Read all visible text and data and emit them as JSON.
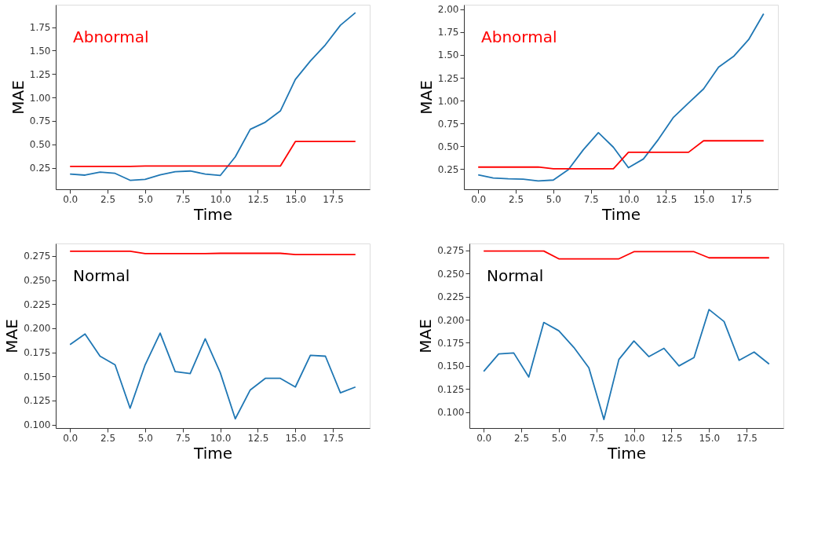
{
  "chart_data": [
    {
      "type": "line",
      "xlabel": "Time",
      "ylabel": "MAE",
      "annotations": [
        "Abnormal"
      ],
      "x": [
        0,
        1,
        2,
        3,
        4,
        5,
        6,
        7,
        8,
        9,
        10,
        11,
        12,
        13,
        14,
        15,
        16,
        17,
        18,
        19
      ],
      "series": [
        {
          "color": "#1f77b4",
          "values": [
            0.183,
            0.171,
            0.204,
            0.19,
            0.116,
            0.125,
            0.174,
            0.208,
            0.215,
            0.183,
            0.167,
            0.366,
            0.66,
            0.736,
            0.856,
            1.192,
            1.389,
            1.562,
            1.771,
            1.905
          ]
        },
        {
          "color": "#ff0000",
          "values": [
            0.264,
            0.264,
            0.264,
            0.264,
            0.264,
            0.268,
            0.268,
            0.268,
            0.268,
            0.268,
            0.268,
            0.268,
            0.268,
            0.268,
            0.268,
            0.53,
            0.53,
            0.53,
            0.53,
            0.53
          ]
        }
      ],
      "xlim": [
        -0.95,
        19.95
      ],
      "ylim": [
        0.02,
        1.99
      ],
      "xticks": [
        {
          "value": 0,
          "label": "0.0"
        },
        2.5,
        {
          "value": 5,
          "label": "5.0"
        },
        7.5,
        {
          "value": 10,
          "label": "10.0"
        },
        12.5,
        {
          "value": 15,
          "label": "15.0"
        },
        17.5
      ],
      "yticks": [
        0.25,
        {
          "value": 0.5,
          "label": "0.50"
        },
        0.75,
        {
          "value": 1,
          "label": "1.00"
        },
        1.25,
        {
          "value": 1.5,
          "label": "1.50"
        },
        1.75
      ],
      "grid": false,
      "legend": false
    },
    {
      "type": "line",
      "xlabel": "Time",
      "ylabel": "MAE",
      "annotations": [
        "Abnormal"
      ],
      "x": [
        0,
        1,
        2,
        3,
        4,
        5,
        6,
        7,
        8,
        9,
        10,
        11,
        12,
        13,
        14,
        15,
        16,
        17,
        18,
        19
      ],
      "series": [
        {
          "color": "#1f77b4",
          "values": [
            0.187,
            0.154,
            0.145,
            0.14,
            0.121,
            0.131,
            0.245,
            0.463,
            0.65,
            0.49,
            0.266,
            0.362,
            0.577,
            0.818,
            0.974,
            1.128,
            1.367,
            1.484,
            1.668,
            1.951
          ]
        },
        {
          "color": "#ff0000",
          "values": [
            0.273,
            0.273,
            0.273,
            0.273,
            0.273,
            0.255,
            0.255,
            0.255,
            0.255,
            0.255,
            0.435,
            0.435,
            0.435,
            0.435,
            0.435,
            0.561,
            0.561,
            0.561,
            0.561,
            0.561
          ]
        }
      ],
      "xlim": [
        -0.95,
        19.95
      ],
      "ylim": [
        0.03,
        2.05
      ],
      "xticks": [
        {
          "value": 0,
          "label": "0.0"
        },
        2.5,
        {
          "value": 5,
          "label": "5.0"
        },
        7.5,
        {
          "value": 10,
          "label": "10.0"
        },
        12.5,
        {
          "value": 15,
          "label": "15.0"
        },
        17.5
      ],
      "yticks": [
        0.25,
        {
          "value": 0.5,
          "label": "0.50"
        },
        0.75,
        {
          "value": 1,
          "label": "1.00"
        },
        1.25,
        {
          "value": 1.5,
          "label": "1.50"
        },
        1.75,
        {
          "value": 2,
          "label": "2.00"
        }
      ],
      "grid": false,
      "legend": false
    },
    {
      "type": "line",
      "xlabel": "Time",
      "ylabel": "MAE",
      "annotations": [
        "Normal"
      ],
      "x": [
        0,
        1,
        2,
        3,
        4,
        5,
        6,
        7,
        8,
        9,
        10,
        11,
        12,
        13,
        14,
        15,
        16,
        17,
        18,
        19
      ],
      "series": [
        {
          "color": "#1f77b4",
          "values": [
            0.183,
            0.194,
            0.171,
            0.162,
            0.117,
            0.162,
            0.195,
            0.155,
            0.153,
            0.189,
            0.154,
            0.106,
            0.136,
            0.148,
            0.148,
            0.139,
            0.172,
            0.171,
            0.133,
            0.139
          ]
        },
        {
          "color": "#ff0000",
          "values": [
            0.28,
            0.28,
            0.28,
            0.28,
            0.28,
            0.2775,
            0.2775,
            0.2775,
            0.2775,
            0.2775,
            0.2778,
            0.2778,
            0.2778,
            0.2778,
            0.2778,
            0.2765,
            0.2765,
            0.2765,
            0.2765,
            0.2765
          ]
        }
      ],
      "xlim": [
        -0.95,
        19.95
      ],
      "ylim": [
        0.0964,
        0.288
      ],
      "xticks": [
        {
          "value": 0,
          "label": "0.0"
        },
        2.5,
        {
          "value": 5,
          "label": "5.0"
        },
        7.5,
        {
          "value": 10,
          "label": "10.0"
        },
        12.5,
        {
          "value": 15,
          "label": "15.0"
        },
        17.5
      ],
      "yticks": [
        {
          "value": 0.1,
          "label": "0.100"
        },
        0.125,
        {
          "value": 0.15,
          "label": "0.150"
        },
        0.175,
        {
          "value": 0.2,
          "label": "0.200"
        },
        0.225,
        {
          "value": 0.25,
          "label": "0.250"
        },
        0.275
      ],
      "grid": false,
      "legend": false
    },
    {
      "type": "line",
      "xlabel": "Time",
      "ylabel": "MAE",
      "annotations": [
        "Normal"
      ],
      "x": [
        0,
        1,
        2,
        3,
        4,
        5,
        6,
        7,
        8,
        9,
        10,
        11,
        12,
        13,
        14,
        15,
        16,
        17,
        18,
        19
      ],
      "series": [
        {
          "color": "#1f77b4",
          "values": [
            0.144,
            0.163,
            0.164,
            0.138,
            0.197,
            0.188,
            0.17,
            0.148,
            0.092,
            0.157,
            0.177,
            0.16,
            0.169,
            0.15,
            0.159,
            0.211,
            0.198,
            0.156,
            0.165,
            0.152
          ]
        },
        {
          "color": "#ff0000",
          "values": [
            0.2743,
            0.2743,
            0.2743,
            0.2743,
            0.2743,
            0.2659,
            0.2659,
            0.2659,
            0.2659,
            0.2659,
            0.2736,
            0.2736,
            0.2736,
            0.2736,
            0.2736,
            0.267,
            0.267,
            0.267,
            0.267,
            0.267
          ]
        }
      ],
      "xlim": [
        -0.95,
        19.95
      ],
      "ylim": [
        0.0827,
        0.2825
      ],
      "xticks": [
        {
          "value": 0,
          "label": "0.0"
        },
        2.5,
        {
          "value": 5,
          "label": "5.0"
        },
        7.5,
        {
          "value": 10,
          "label": "10.0"
        },
        12.5,
        {
          "value": 15,
          "label": "15.0"
        },
        17.5
      ],
      "yticks": [
        {
          "value": 0.1,
          "label": "0.100"
        },
        0.125,
        {
          "value": 0.15,
          "label": "0.150"
        },
        0.175,
        {
          "value": 0.2,
          "label": "0.200"
        },
        0.225,
        {
          "value": 0.25,
          "label": "0.250"
        },
        0.275
      ],
      "grid": false,
      "legend": false
    }
  ]
}
